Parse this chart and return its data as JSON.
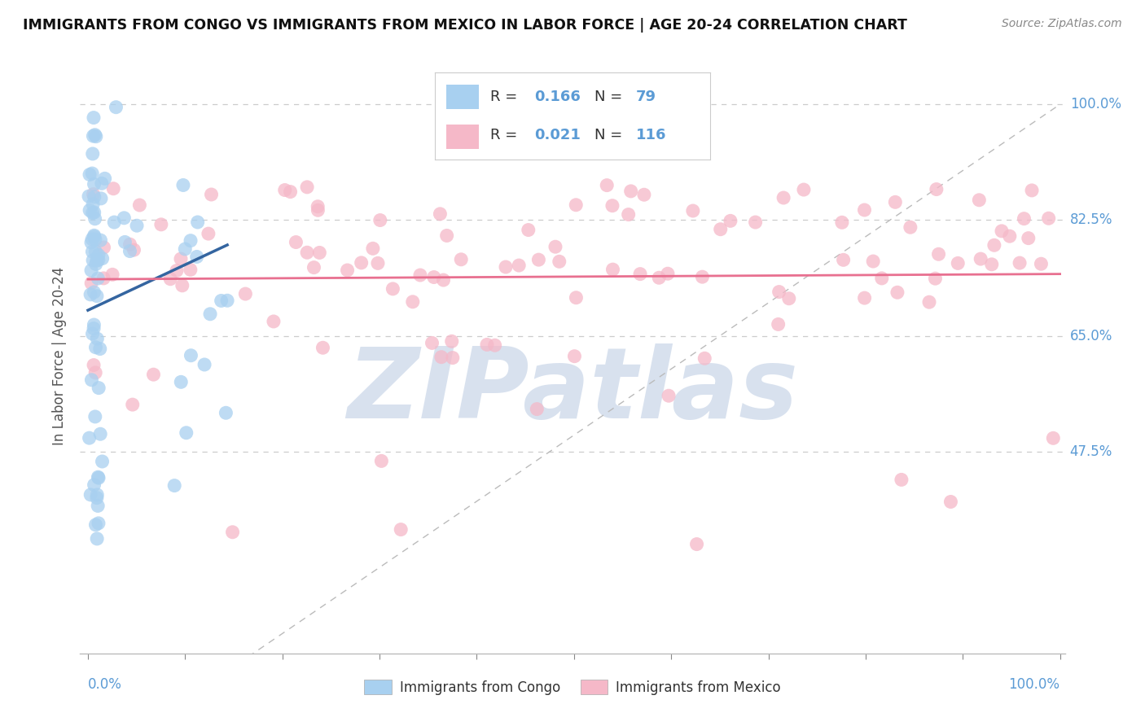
{
  "title": "IMMIGRANTS FROM CONGO VS IMMIGRANTS FROM MEXICO IN LABOR FORCE | AGE 20-24 CORRELATION CHART",
  "source": "Source: ZipAtlas.com",
  "ylabel": "In Labor Force | Age 20-24",
  "congo_R": 0.166,
  "congo_N": 79,
  "mexico_R": 0.021,
  "mexico_N": 116,
  "blue_color": "#a8d0f0",
  "pink_color": "#f5b8c8",
  "blue_line_color": "#3465a0",
  "pink_line_color": "#e87090",
  "watermark": "ZIPatlas",
  "watermark_color": "#c8d5e8",
  "ytick_labels": [
    "47.5%",
    "65.0%",
    "82.5%",
    "100.0%"
  ],
  "ytick_values": [
    0.475,
    0.65,
    0.825,
    1.0
  ],
  "xtick_left_label": "0.0%",
  "xtick_right_label": "100.0%",
  "legend_congo": "Immigrants from Congo",
  "legend_mexico": "Immigrants from Mexico",
  "axis_label_color": "#5b9bd5",
  "tick_color": "#888888",
  "grid_color": "#cccccc"
}
